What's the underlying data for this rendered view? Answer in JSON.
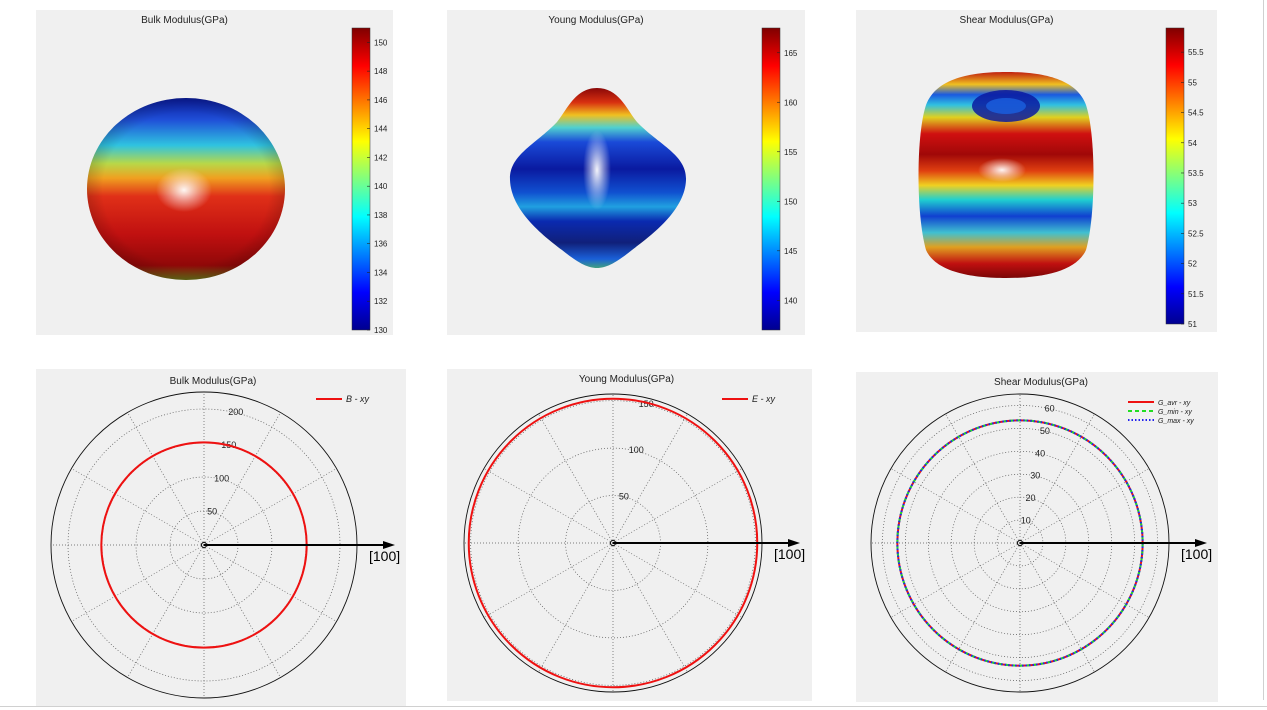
{
  "colors": {
    "panel_bg": "#f0f0f0",
    "red_curve": "#ee1111",
    "green_curve": "#22dd22",
    "blue_curve": "#2222ee",
    "grid": "#555555",
    "axis_arrow": "#000000"
  },
  "direction_label": "[100]",
  "chart_data": [
    {
      "type": "3d-surface",
      "title": "Bulk Modulus(GPa)",
      "colorbar": {
        "colormap": "jet",
        "range": [
          130,
          151
        ],
        "ticks": [
          130,
          132,
          134,
          136,
          138,
          140,
          142,
          144,
          146,
          148,
          150
        ]
      }
    },
    {
      "type": "3d-surface",
      "title": "Young Modulus(GPa)",
      "colorbar": {
        "colormap": "jet",
        "range": [
          137,
          167.5
        ],
        "ticks": [
          140,
          145,
          150,
          155,
          160,
          165
        ]
      }
    },
    {
      "type": "3d-surface",
      "title": "Shear Modulus(GPa)",
      "colorbar": {
        "colormap": "jet",
        "range": [
          51,
          55.9
        ],
        "ticks": [
          51,
          51.5,
          52,
          52.5,
          53,
          53.5,
          54,
          54.5,
          55,
          55.5
        ]
      }
    },
    {
      "type": "polar",
      "title": "Bulk Modulus(GPa)",
      "rmax": 225,
      "rticks": [
        50,
        100,
        150,
        200
      ],
      "series": [
        {
          "name": "B - xy",
          "r": 151
        }
      ],
      "direction_label": "[100]"
    },
    {
      "type": "polar",
      "title": "Young Modulus(GPa)",
      "rmax": 157,
      "rticks": [
        50,
        100,
        150
      ],
      "series": [
        {
          "name": "E - xy",
          "r": 152
        }
      ],
      "direction_label": "[100]"
    },
    {
      "type": "polar",
      "title": "Shear Modulus(GPa)",
      "rmax": 65,
      "rticks": [
        10,
        20,
        30,
        40,
        50,
        60
      ],
      "series": [
        {
          "name": "G_avr - xy",
          "r": 53.5
        },
        {
          "name": "G_min - xy",
          "r": 53.5
        },
        {
          "name": "G_max - xy",
          "r": 53.5
        }
      ],
      "direction_label": "[100]"
    }
  ]
}
